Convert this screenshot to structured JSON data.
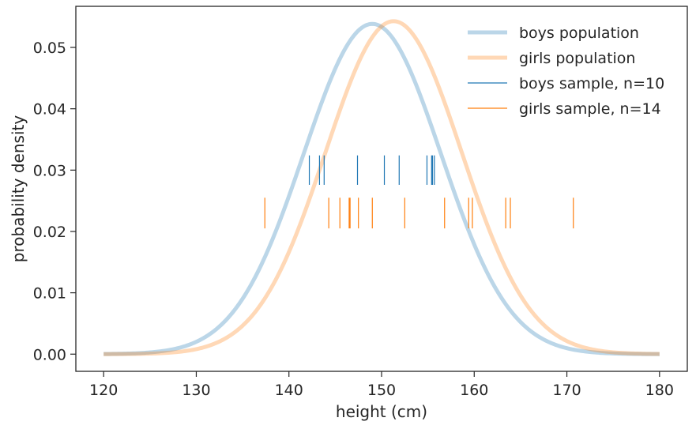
{
  "chart_data": {
    "type": "line",
    "title": "",
    "xlabel": "height (cm)",
    "ylabel": "probability density",
    "xlim": [
      117,
      183
    ],
    "ylim": [
      -0.0028,
      0.0567
    ],
    "xticks": [
      "120",
      "130",
      "140",
      "150",
      "160",
      "170",
      "180"
    ],
    "yticks": [
      "0.00",
      "0.01",
      "0.02",
      "0.03",
      "0.04",
      "0.05"
    ],
    "xtick_values": [
      120,
      130,
      140,
      150,
      160,
      170,
      180
    ],
    "ytick_values": [
      0,
      0.01,
      0.02,
      0.03,
      0.04,
      0.05
    ],
    "grid": false,
    "legend_position": "top-right",
    "series": [
      {
        "name": "boys population",
        "kind": "normal_pdf",
        "mean": 149,
        "sd": 7.41,
        "x_range": [
          120,
          180
        ],
        "color": "#1f77b4",
        "alpha": 0.3
      },
      {
        "name": "girls population",
        "kind": "normal_pdf",
        "mean": 151.3,
        "sd": 7.35,
        "x_range": [
          120,
          180
        ],
        "color": "#ff7f0e",
        "alpha": 0.3
      },
      {
        "name": "boys sample, n=10",
        "kind": "rug",
        "y_center": 0.03,
        "y_half": 0.0024,
        "color": "#1f77b4",
        "values": [
          142.2,
          143.3,
          143.8,
          147.4,
          150.3,
          151.9,
          154.9,
          155.4,
          155.5,
          155.7
        ]
      },
      {
        "name": "girls sample, n=14",
        "kind": "rug",
        "y_center": 0.023,
        "y_half": 0.0025,
        "color": "#ff7f0e",
        "values": [
          137.4,
          144.3,
          145.5,
          146.5,
          146.6,
          147.5,
          149.0,
          152.5,
          156.8,
          159.4,
          159.8,
          163.4,
          163.9,
          170.7
        ]
      }
    ]
  }
}
